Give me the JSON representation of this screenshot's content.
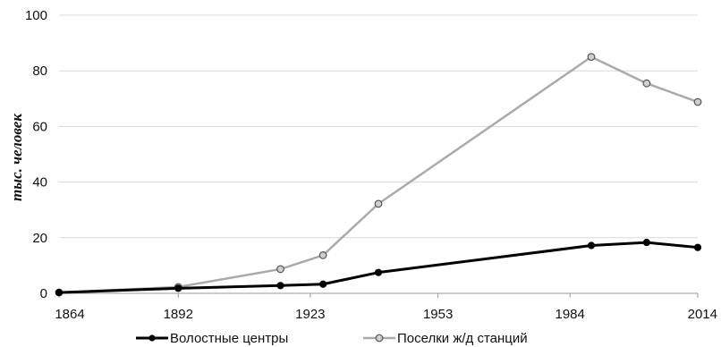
{
  "chart_data": {
    "type": "line",
    "title": "",
    "xlabel": "",
    "ylabel": "тыс. человек",
    "xlim": [
      1864,
      2014
    ],
    "ylim": [
      0,
      100
    ],
    "x_ticks": [
      1864,
      1892,
      1923,
      1953,
      1984,
      2014
    ],
    "y_ticks": [
      0,
      20,
      40,
      60,
      80,
      100
    ],
    "grid": "horizontal",
    "legend_position": "bottom",
    "series": [
      {
        "name": "Волостные центры",
        "color": "#000000",
        "marker": "filled-circle",
        "x": [
          1864,
          1892,
          1916,
          1926,
          1939,
          1989,
          2002,
          2014
        ],
        "values": [
          0.3,
          1.8,
          2.8,
          3.3,
          7.5,
          17.2,
          18.3,
          16.5
        ]
      },
      {
        "name": "Поселки ж/д станций",
        "color": "#aaaaaa",
        "marker": "open-circle",
        "x": [
          1864,
          1892,
          1916,
          1926,
          1939,
          1989,
          2002,
          2014
        ],
        "values": [
          0.3,
          2.3,
          8.7,
          13.7,
          32.2,
          85.0,
          75.5,
          68.8
        ]
      }
    ]
  }
}
